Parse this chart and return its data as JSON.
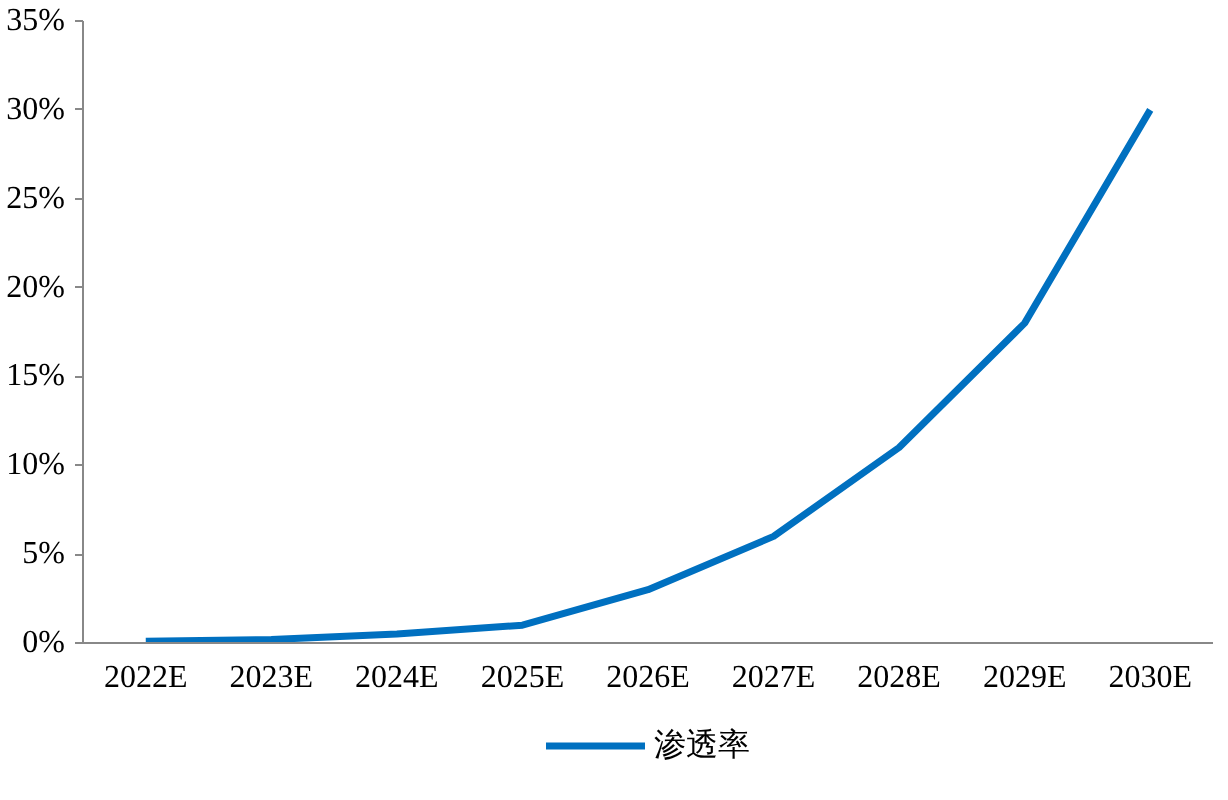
{
  "chart_data": {
    "type": "line",
    "categories": [
      "2022E",
      "2023E",
      "2024E",
      "2025E",
      "2026E",
      "2027E",
      "2028E",
      "2029E",
      "2030E"
    ],
    "series": [
      {
        "name": "渗透率",
        "color": "#0070c0",
        "values": [
          0.1,
          0.2,
          0.5,
          1.0,
          3,
          6,
          11,
          18,
          30
        ]
      }
    ],
    "ylim": [
      0,
      35
    ],
    "yticks": [
      {
        "value": 0,
        "label": "0%"
      },
      {
        "value": 5,
        "label": "5%"
      },
      {
        "value": 10,
        "label": "10%"
      },
      {
        "value": 15,
        "label": "15%"
      },
      {
        "value": 20,
        "label": "20%"
      },
      {
        "value": 25,
        "label": "25%"
      },
      {
        "value": 30,
        "label": "30%"
      },
      {
        "value": 35,
        "label": "35%"
      }
    ],
    "grid": false,
    "legend": "bottom",
    "marker": "none",
    "line_style": "solid"
  }
}
